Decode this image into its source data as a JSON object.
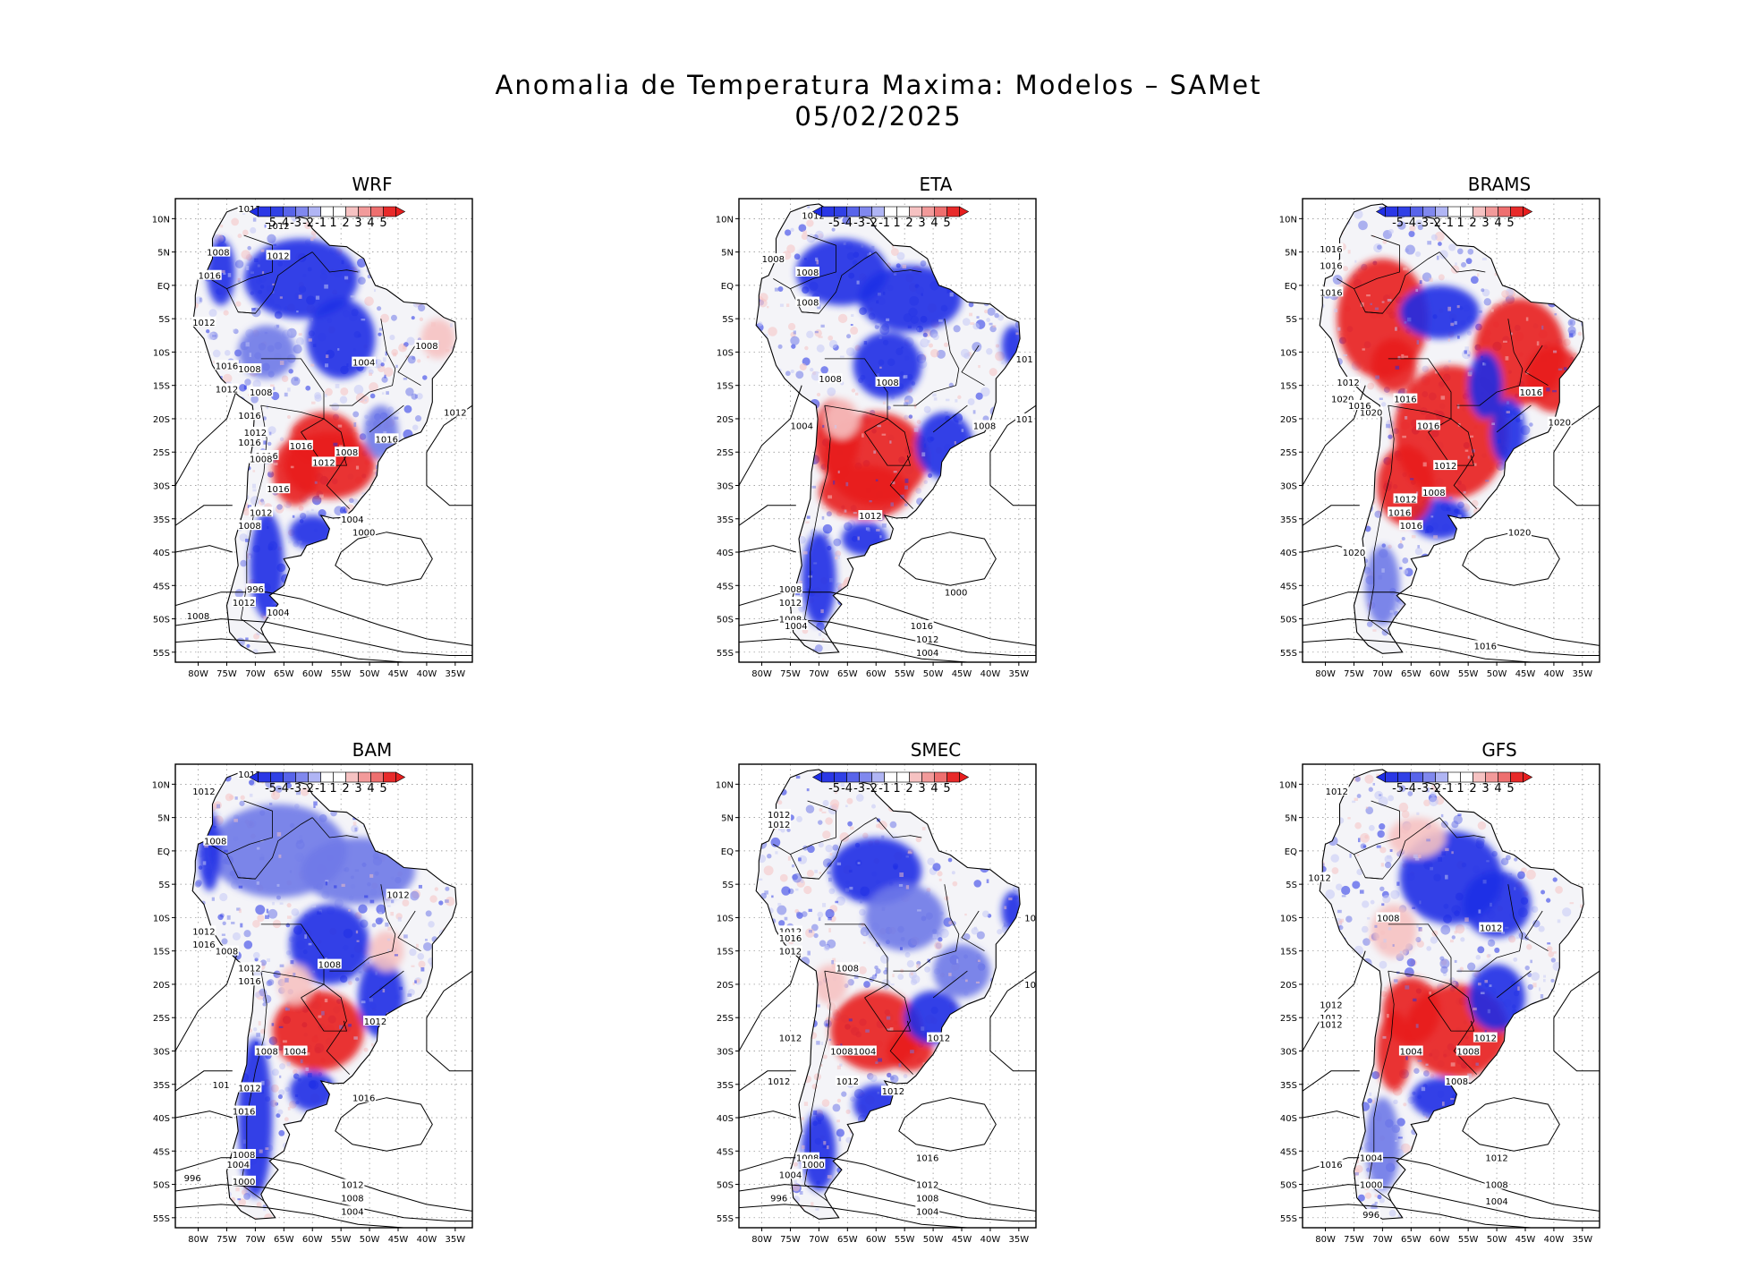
{
  "title_line1": "Anomalia de Temperatura Maxima: Modelos – SAMet",
  "title_line2": "05/02/2025",
  "colors": {
    "strong_blue": "#1f2ee6",
    "mid_blue": "#6f79e8",
    "light_blue": "#c5c9f5",
    "light_red": "#f6c2c2",
    "mid_red": "#f07070",
    "strong_red": "#e81e1e",
    "land_white": "#f4f4f8"
  },
  "colorbar": {
    "labels": [
      "-5",
      "-4",
      "-3",
      "-2",
      "-1",
      "1",
      "2",
      "3",
      "4",
      "5"
    ]
  },
  "axes": {
    "lat_labels": [
      "10N",
      "5N",
      "EQ",
      "5S",
      "10S",
      "15S",
      "20S",
      "25S",
      "30S",
      "35S",
      "40S",
      "45S",
      "50S",
      "55S"
    ],
    "lon_labels": [
      "80W",
      "75W",
      "70W",
      "65W",
      "60W",
      "55W",
      "50W",
      "45W",
      "40W",
      "35W"
    ]
  },
  "panels": [
    {
      "name": "WRF",
      "isobars": [
        "1012",
        "1012",
        "1012",
        "1008",
        "1016",
        "1012",
        "1016",
        "1008",
        "1012",
        "1008",
        "1016",
        "1012",
        "1016",
        "1016",
        "1008",
        "1012",
        "1016",
        "1016",
        "1008",
        "1004",
        "1008",
        "1012",
        "1016",
        "1012",
        "1008",
        "1004",
        "1000",
        "996",
        "1012",
        "1008",
        "1004"
      ]
    },
    {
      "name": "ETA",
      "isobars": [
        "1012",
        "1008",
        "1008",
        "1008",
        "1008",
        "101",
        "1008",
        "1008",
        "101",
        "1004",
        "1012",
        "1008",
        "1012",
        "1008",
        "1004",
        "1000",
        "1016",
        "1012",
        "1008",
        "1004"
      ]
    },
    {
      "name": "BRAMS",
      "isobars": [
        "1016",
        "1016",
        "1016",
        "1012",
        "1020",
        "1020",
        "1016",
        "1016",
        "1016",
        "1020",
        "1016",
        "1012",
        "1008",
        "1012",
        "1016",
        "1016",
        "1020",
        "1020",
        "1016"
      ]
    },
    {
      "name": "BAM",
      "isobars": [
        "1012",
        "1012",
        "1008",
        "1012",
        "1012",
        "1016",
        "1008",
        "1008",
        "1012",
        "1016",
        "1012",
        "1004",
        "1008",
        "101",
        "1012",
        "1016",
        "1016",
        "1008",
        "1004",
        "996",
        "1000",
        "1012",
        "1008",
        "1004"
      ]
    },
    {
      "name": "SMEC",
      "isobars": [
        "1012",
        "1012",
        "1012",
        "1016",
        "1012",
        "10",
        "1008",
        "10",
        "1012",
        "1012",
        "1012",
        "1004",
        "1008",
        "1012",
        "1012",
        "1008",
        "1000",
        "1004",
        "996",
        "1016",
        "1012",
        "1008",
        "1004"
      ]
    },
    {
      "name": "GFS",
      "isobars": [
        "1012",
        "1012",
        "1008",
        "1012",
        "1012",
        "1012",
        "1012",
        "1004",
        "1008",
        "1012",
        "1008",
        "1004",
        "1000",
        "996",
        "1016",
        "1012",
        "1008",
        "1004"
      ]
    }
  ]
}
